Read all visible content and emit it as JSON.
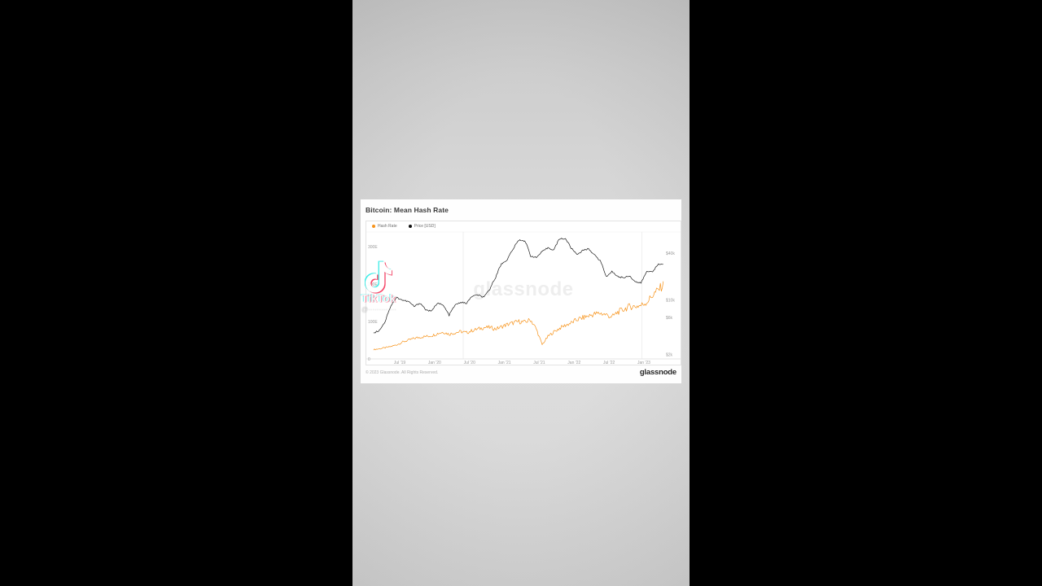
{
  "card": {
    "title": "Bitcoin: Mean Hash Rate",
    "legend": [
      {
        "label": "Hash Rate",
        "color": "#F7931A"
      },
      {
        "label": "Price [USD]",
        "color": "#111111"
      }
    ],
    "center_watermark": "glassnode",
    "footer_left": "© 2023 Glassnode. All Rights Reserved.",
    "brand": "glassnode"
  },
  "watermark": {
    "app_name": "TikTok",
    "username": "@·············"
  },
  "colors": {
    "hash_rate": "#F7931A",
    "price": "#1a1a1a",
    "grid": "#e4e4e4",
    "axis_text": "#9a9a9a"
  },
  "chart_data": {
    "type": "line",
    "title": "Bitcoin: Mean Hash Rate",
    "legend_position": "top-left",
    "grid": "sparse-vertical",
    "x_axis": {
      "tick_values": [
        2019.5,
        2020.0,
        2020.5,
        2021.0,
        2021.5,
        2022.0,
        2022.5,
        2023.0
      ],
      "tick_labels": [
        "Jul '19",
        "Jan '20",
        "Jul '20",
        "Jan '21",
        "Jul '21",
        "Jan '22",
        "Jul '22",
        "Jan '23"
      ],
      "range": [
        2019.15,
        2023.26
      ]
    },
    "left_axis": {
      "label": "Hash Rate",
      "unit": "EH/s",
      "scale": "linear",
      "tick_values": [
        300,
        200,
        100,
        0
      ],
      "tick_labels": [
        "300E",
        "200E",
        "100E",
        "0"
      ],
      "range": [
        0,
        335
      ]
    },
    "right_axis": {
      "label": "Price [USD]",
      "scale": "log",
      "tick_values": [
        40000,
        10000,
        6000,
        2000
      ],
      "tick_labels": [
        "$40k",
        "$10k",
        "$6k",
        "$2k"
      ],
      "range": [
        1800,
        73000
      ]
    },
    "gridlines_x": [
      2020.41,
      2022.97
    ],
    "x_monthly": [
      2019.125,
      2019.208,
      2019.292,
      2019.375,
      2019.458,
      2019.542,
      2019.625,
      2019.708,
      2019.792,
      2019.875,
      2019.958,
      2020.042,
      2020.125,
      2020.208,
      2020.292,
      2020.375,
      2020.458,
      2020.542,
      2020.625,
      2020.708,
      2020.792,
      2020.875,
      2020.958,
      2021.042,
      2021.125,
      2021.208,
      2021.292,
      2021.375,
      2021.458,
      2021.542,
      2021.625,
      2021.708,
      2021.792,
      2021.875,
      2021.958,
      2022.042,
      2022.125,
      2022.208,
      2022.292,
      2022.375,
      2022.458,
      2022.542,
      2022.625,
      2022.708,
      2022.792,
      2022.875,
      2022.958,
      2023.042,
      2023.125,
      2023.208,
      2023.292
    ],
    "series": [
      {
        "name": "Hash Rate",
        "axis": "left",
        "color": "#F7931A",
        "noise": 0.065,
        "values": [
          25,
          27,
          30,
          33,
          38,
          45,
          50,
          55,
          58,
          60,
          62,
          68,
          72,
          66,
          70,
          73,
          70,
          76,
          80,
          84,
          84,
          80,
          86,
          92,
          96,
          100,
          98,
          105,
          80,
          38,
          60,
          72,
          82,
          90,
          96,
          105,
          110,
          115,
          120,
          122,
          118,
          112,
          125,
          132,
          140,
          140,
          143,
          152,
          170,
          185,
          200
        ]
      },
      {
        "name": "Price [USD]",
        "axis": "right",
        "color": "#1a1a1a",
        "noise": 0.022,
        "values": [
          3800,
          4100,
          5300,
          8500,
          10800,
          10000,
          9600,
          8300,
          9200,
          7500,
          7200,
          9300,
          8500,
          6400,
          8600,
          9400,
          9100,
          11300,
          11600,
          10800,
          13800,
          19700,
          29000,
          33000,
          45000,
          58800,
          57700,
          37000,
          35000,
          41500,
          47000,
          43800,
          61300,
          61000,
          46200,
          38500,
          43200,
          45500,
          37600,
          31800,
          19900,
          23300,
          20000,
          19400,
          20500,
          17200,
          16500,
          23100,
          23500,
          28500,
          29200
        ]
      }
    ]
  }
}
